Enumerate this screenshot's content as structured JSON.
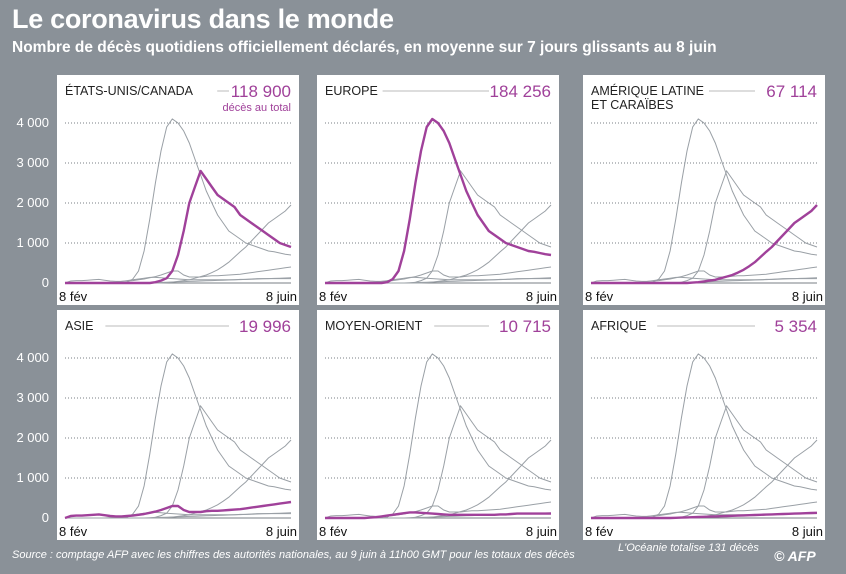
{
  "header": {
    "title": "Le coronavirus dans le monde",
    "subtitle": "Nombre de décès quotidiens officiellement déclarés, en moyenne sur 7 jours glissants au 8 juin"
  },
  "footer": {
    "source": "Source : comptage AFP avec les chiffres des autorités nationales, au 9 juin à 11h00 GMT pour les totaux des décès",
    "oceania_note": "L'Océanie totalise 131 décès",
    "logo": "© AFP"
  },
  "colors": {
    "highlight": "#a0419a",
    "context": "#9aa0a6",
    "background": "#8a9198"
  },
  "chart_data": {
    "type": "line",
    "x_start_label": "8 fév",
    "x_end_label": "8 juin",
    "ylim": [
      0,
      4200
    ],
    "yticks": [
      "4 000",
      "3 000",
      "2 000",
      "1 000",
      "0"
    ],
    "ytick_values": [
      4000,
      3000,
      2000,
      1000,
      0
    ],
    "total_note": "décès au total",
    "regions": [
      {
        "key": "na",
        "name": "États-Unis/Canada",
        "total": "118 900",
        "values": [
          0,
          0,
          0,
          0,
          0,
          0,
          0,
          0,
          0,
          0,
          0,
          0,
          0,
          0,
          0,
          0,
          20,
          60,
          120,
          300,
          700,
          1300,
          2000,
          2400,
          2800,
          2600,
          2400,
          2200,
          2100,
          2000,
          1900,
          1700,
          1600,
          1500,
          1400,
          1300,
          1200,
          1100,
          1000,
          950,
          900
        ]
      },
      {
        "key": "eu",
        "name": "Europe",
        "total": "184 256",
        "values": [
          0,
          0,
          0,
          0,
          0,
          0,
          0,
          0,
          0,
          0,
          0,
          20,
          100,
          300,
          800,
          1600,
          2500,
          3300,
          3900,
          4100,
          4000,
          3800,
          3500,
          3100,
          2700,
          2300,
          2000,
          1700,
          1500,
          1300,
          1200,
          1100,
          1000,
          950,
          900,
          850,
          800,
          780,
          750,
          720,
          700
        ]
      },
      {
        "key": "latam",
        "name": "Amérique latine et Caraïbes",
        "total": "67 114",
        "values": [
          0,
          0,
          0,
          0,
          0,
          0,
          0,
          0,
          0,
          0,
          0,
          0,
          0,
          0,
          0,
          0,
          0,
          0,
          10,
          20,
          40,
          60,
          80,
          120,
          160,
          200,
          260,
          330,
          420,
          520,
          650,
          780,
          900,
          1050,
          1200,
          1350,
          1500,
          1600,
          1700,
          1800,
          1950
        ]
      },
      {
        "key": "asia",
        "name": "Asie",
        "total": "19 996",
        "values": [
          0,
          50,
          60,
          60,
          70,
          80,
          90,
          70,
          50,
          40,
          40,
          50,
          60,
          80,
          100,
          130,
          160,
          200,
          250,
          300,
          300,
          200,
          150,
          150,
          150,
          170,
          180,
          180,
          190,
          200,
          210,
          220,
          240,
          260,
          280,
          300,
          320,
          340,
          360,
          380,
          400
        ]
      },
      {
        "key": "me",
        "name": "Moyen-Orient",
        "total": "10 715",
        "values": [
          0,
          0,
          0,
          0,
          0,
          0,
          0,
          0,
          10,
          20,
          40,
          60,
          80,
          100,
          120,
          140,
          140,
          130,
          120,
          110,
          100,
          90,
          80,
          80,
          80,
          80,
          80,
          80,
          80,
          80,
          80,
          90,
          90,
          100,
          110,
          110,
          110,
          110,
          110,
          110,
          110
        ]
      },
      {
        "key": "af",
        "name": "Afrique",
        "total": "5 354",
        "values": [
          0,
          0,
          0,
          0,
          0,
          0,
          0,
          0,
          0,
          0,
          0,
          0,
          0,
          0,
          0,
          5,
          10,
          15,
          20,
          25,
          30,
          35,
          40,
          45,
          50,
          55,
          60,
          65,
          70,
          75,
          80,
          85,
          90,
          95,
          100,
          105,
          110,
          115,
          120,
          125,
          130
        ]
      }
    ]
  }
}
